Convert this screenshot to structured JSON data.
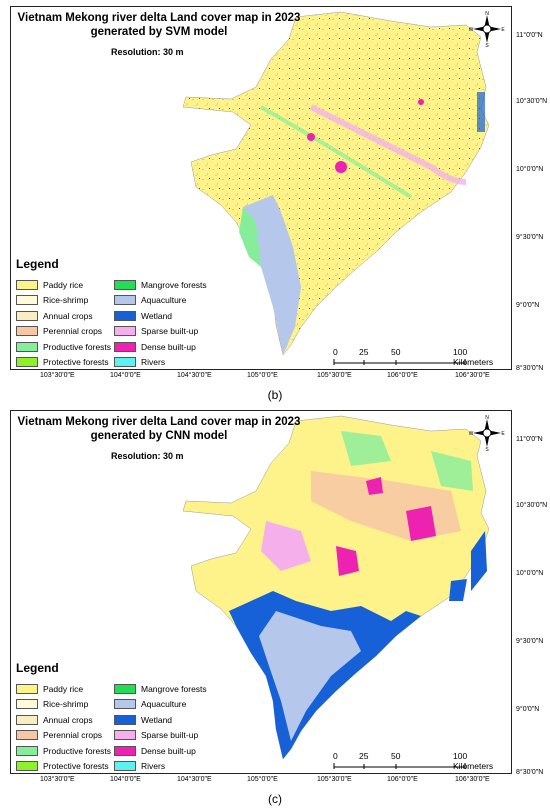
{
  "panels": [
    {
      "id": "b",
      "title_line1": "Vietnam Mekong river delta Land cover map in 2023",
      "title_line2": "generated by SVM model",
      "resolution": "Resolution: 30 m",
      "caption": "(b)"
    },
    {
      "id": "c",
      "title_line1": "Vietnam Mekong river delta Land cover map in 2023",
      "title_line2": "generated by CNN model",
      "resolution": "Resolution: 30 m",
      "caption": "(c)"
    }
  ],
  "legend": {
    "title": "Legend",
    "left": [
      {
        "label": "Paddy rice",
        "color": "#fdf38a"
      },
      {
        "label": "Rice-shrimp",
        "color": "#fffbd8"
      },
      {
        "label": "Annual crops",
        "color": "#f7eec1"
      },
      {
        "label": "Perennial crops",
        "color": "#f6c6a5"
      },
      {
        "label": "Productive forests",
        "color": "#86ee9a"
      },
      {
        "label": "Protective forests",
        "color": "#8ef22a"
      }
    ],
    "right": [
      {
        "label": "Mangrove forests",
        "color": "#22dd55"
      },
      {
        "label": "Aquaculture",
        "color": "#b5c8ec"
      },
      {
        "label": "Wetland",
        "color": "#1660d8"
      },
      {
        "label": "Sparse built-up",
        "color": "#f5b0ec"
      },
      {
        "label": "Dense built-up",
        "color": "#ee22b0"
      },
      {
        "label": "Rivers",
        "color": "#5cf2f2"
      }
    ]
  },
  "scale": {
    "ticks": [
      "0",
      "25",
      "50",
      "100 Kilometers"
    ]
  },
  "latitudes": [
    "11°0'0\"N",
    "10°30'0\"N",
    "10°0'0\"N",
    "9°30'0\"N",
    "9°0'0\"N",
    "8°30'0\"N"
  ],
  "longitudes": [
    "103°30'0\"E",
    "104°0'0\"E",
    "104°30'0\"E",
    "105°0'0\"E",
    "105°30'0\"E",
    "106°0'0\"E",
    "106°30'0\"E"
  ],
  "north_arrow": {
    "n": "N",
    "s": "S",
    "e": "E",
    "w": "W",
    "icon": "compass-rose-icon"
  }
}
